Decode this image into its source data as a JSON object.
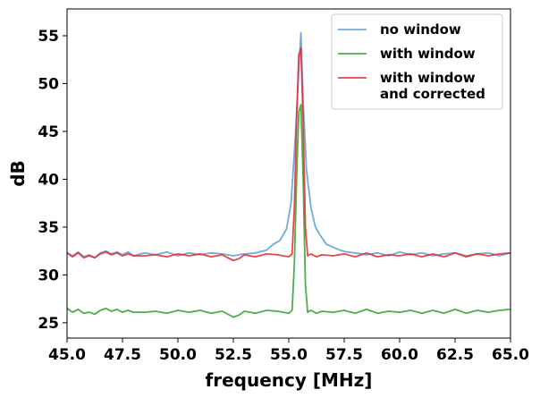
{
  "chart_data": {
    "type": "line",
    "xlabel": "frequency [MHz]",
    "ylabel": "dB",
    "xlim": [
      45.0,
      65.0
    ],
    "ylim": [
      23.4,
      57.8
    ],
    "xticks": [
      "45.0",
      "47.5",
      "50.0",
      "52.5",
      "55.0",
      "57.5",
      "60.0",
      "62.5",
      "65.0"
    ],
    "yticks": [
      "25",
      "30",
      "35",
      "40",
      "45",
      "50",
      "55"
    ],
    "grid": false,
    "legend_position": "top-right",
    "series": [
      {
        "name": "no window",
        "color": "#5b9bd5",
        "x": [
          45.0,
          45.25,
          45.5,
          45.75,
          46.0,
          46.25,
          46.5,
          46.75,
          47.0,
          47.25,
          47.5,
          47.75,
          48.0,
          48.5,
          49.0,
          49.5,
          50.0,
          50.5,
          51.0,
          51.5,
          52.0,
          52.5,
          53.0,
          53.5,
          54.0,
          54.3,
          54.6,
          54.9,
          55.1,
          55.3,
          55.45,
          55.55,
          55.65,
          55.8,
          56.0,
          56.2,
          56.4,
          56.7,
          57.0,
          57.3,
          57.6,
          58.0,
          58.5,
          59.0,
          59.5,
          60.0,
          60.5,
          61.0,
          61.5,
          62.0,
          62.5,
          63.0,
          63.5,
          64.0,
          64.5,
          65.0
        ],
        "y": [
          32.3,
          32.0,
          32.4,
          31.9,
          32.1,
          31.8,
          32.3,
          32.5,
          32.2,
          32.4,
          32.1,
          32.4,
          32.0,
          32.3,
          32.1,
          32.4,
          32.0,
          32.3,
          32.1,
          32.3,
          32.2,
          32.0,
          32.2,
          32.3,
          32.6,
          33.2,
          33.6,
          34.8,
          37.5,
          44.5,
          51.5,
          55.3,
          48.0,
          41.0,
          37.0,
          35.0,
          34.2,
          33.2,
          32.9,
          32.6,
          32.4,
          32.3,
          32.1,
          32.3,
          32.0,
          32.4,
          32.1,
          32.3,
          32.0,
          32.2,
          32.3,
          32.0,
          32.2,
          32.3,
          32.0,
          32.3
        ]
      },
      {
        "name": "with window",
        "color": "#2ca02c",
        "x": [
          45.0,
          45.25,
          45.5,
          45.75,
          46.0,
          46.25,
          46.5,
          46.75,
          47.0,
          47.25,
          47.5,
          47.75,
          48.0,
          48.5,
          49.0,
          49.5,
          50.0,
          50.5,
          51.0,
          51.5,
          52.0,
          52.5,
          52.75,
          53.0,
          53.5,
          54.0,
          54.5,
          55.0,
          55.15,
          55.25,
          55.35,
          55.45,
          55.55,
          55.65,
          55.75,
          55.85,
          56.0,
          56.25,
          56.5,
          57.0,
          57.5,
          58.0,
          58.5,
          59.0,
          59.5,
          60.0,
          60.5,
          61.0,
          61.5,
          62.0,
          62.5,
          63.0,
          63.5,
          64.0,
          64.5,
          65.0
        ],
        "y": [
          26.5,
          26.1,
          26.4,
          26.0,
          26.1,
          25.9,
          26.3,
          26.5,
          26.2,
          26.4,
          26.1,
          26.3,
          26.1,
          26.1,
          26.2,
          26.0,
          26.3,
          26.1,
          26.3,
          26.0,
          26.2,
          25.6,
          25.8,
          26.2,
          26.0,
          26.3,
          26.2,
          26.0,
          26.3,
          31.0,
          40.0,
          47.0,
          47.8,
          40.0,
          29.0,
          26.1,
          26.3,
          26.0,
          26.2,
          26.1,
          26.3,
          26.0,
          26.4,
          26.0,
          26.2,
          26.1,
          26.3,
          26.0,
          26.3,
          26.0,
          26.4,
          26.0,
          26.3,
          26.1,
          26.3,
          26.4
        ]
      },
      {
        "name": "with window\nand corrected",
        "color": "#e8262a",
        "x": [
          45.0,
          45.25,
          45.5,
          45.75,
          46.0,
          46.25,
          46.5,
          46.75,
          47.0,
          47.25,
          47.5,
          47.75,
          48.0,
          48.5,
          49.0,
          49.5,
          50.0,
          50.5,
          51.0,
          51.5,
          52.0,
          52.5,
          52.75,
          53.0,
          53.5,
          54.0,
          54.5,
          55.0,
          55.15,
          55.25,
          55.35,
          55.45,
          55.55,
          55.65,
          55.75,
          55.85,
          56.0,
          56.25,
          56.5,
          57.0,
          57.5,
          58.0,
          58.5,
          59.0,
          59.5,
          60.0,
          60.5,
          61.0,
          61.5,
          62.0,
          62.5,
          63.0,
          63.5,
          64.0,
          64.5,
          65.0
        ],
        "y": [
          32.3,
          31.9,
          32.3,
          31.8,
          32.0,
          31.8,
          32.2,
          32.4,
          32.1,
          32.3,
          32.0,
          32.2,
          32.0,
          32.0,
          32.1,
          31.9,
          32.2,
          32.0,
          32.2,
          31.9,
          32.1,
          31.5,
          31.7,
          32.1,
          31.9,
          32.2,
          32.1,
          31.9,
          32.2,
          37.0,
          46.0,
          53.0,
          53.7,
          46.0,
          35.0,
          32.0,
          32.2,
          31.9,
          32.1,
          32.0,
          32.2,
          31.9,
          32.3,
          31.9,
          32.1,
          32.0,
          32.2,
          31.9,
          32.2,
          31.9,
          32.3,
          31.9,
          32.2,
          32.0,
          32.2,
          32.3
        ]
      }
    ]
  }
}
